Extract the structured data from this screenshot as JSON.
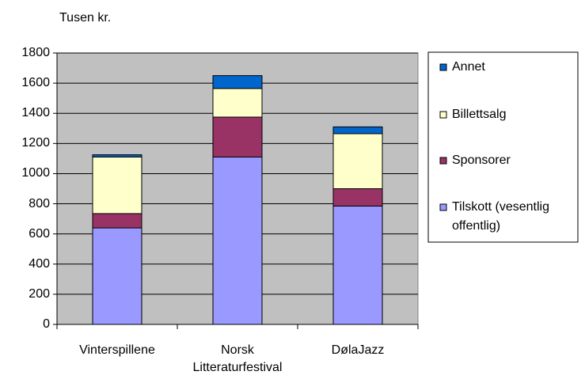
{
  "chart_data": {
    "type": "stacked-bar",
    "y_label": "Tusen kr.",
    "categories": [
      "Vinterspillene",
      "Norsk Litteraturfestival",
      "DølaJazz"
    ],
    "series": [
      {
        "name": "Tilskott (vesentlig offentlig)",
        "color": "#9999ff",
        "values": [
          640,
          1110,
          785
        ]
      },
      {
        "name": "Sponsorer",
        "color": "#993366",
        "values": [
          95,
          265,
          115
        ]
      },
      {
        "name": "Billettsalg",
        "color": "#ffffcc",
        "values": [
          375,
          190,
          365
        ]
      },
      {
        "name": "Annet",
        "color": "#0066cc",
        "values": [
          15,
          85,
          45
        ]
      }
    ],
    "ylim": [
      0,
      1800
    ],
    "yticks": [
      0,
      200,
      400,
      600,
      800,
      1000,
      1200,
      1400,
      1600,
      1800
    ],
    "grid": true,
    "legend": "right"
  }
}
